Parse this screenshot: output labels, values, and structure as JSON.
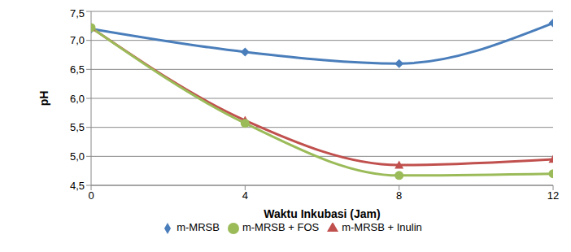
{
  "chart_data": {
    "type": "line",
    "x_label": "Waktu Inkubasi (Jam)",
    "y_label": "pH",
    "x": [
      0,
      4,
      8,
      12
    ],
    "xlim": [
      0,
      12
    ],
    "xticks": [
      0,
      4,
      8,
      12
    ],
    "ylim": [
      4.5,
      7.5
    ],
    "yticks": [
      {
        "value": 4.5,
        "label": "4,5"
      },
      {
        "value": 5.0,
        "label": "5,0"
      },
      {
        "value": 5.5,
        "label": "5,5"
      },
      {
        "value": 6.0,
        "label": "6,0"
      },
      {
        "value": 6.5,
        "label": "6,5"
      },
      {
        "value": 7.0,
        "label": "7,0"
      },
      {
        "value": 7.5,
        "label": "7,5"
      }
    ],
    "grid": true,
    "legend": "bottom",
    "series": [
      {
        "name": "m-MRSB",
        "color": "#4a7ebb",
        "marker": "diamond",
        "values": [
          7.2,
          6.8,
          6.6,
          7.3
        ]
      },
      {
        "name": "m-MRSB + Inulin",
        "color": "#c0504d",
        "marker": "triangle",
        "values": [
          7.22,
          5.62,
          4.85,
          4.95
        ]
      },
      {
        "name": "m-MRSB + FOS",
        "color": "#9bbb59",
        "marker": "circle",
        "values": [
          7.22,
          5.57,
          4.67,
          4.7
        ]
      }
    ]
  }
}
